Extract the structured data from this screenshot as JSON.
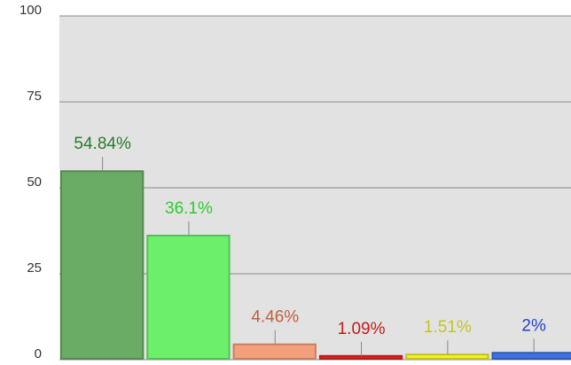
{
  "chart_data": {
    "type": "bar",
    "categories": [
      null,
      null,
      null,
      null,
      null,
      null
    ],
    "values": [
      54.84,
      36.1,
      4.46,
      1.09,
      1.51,
      2
    ],
    "value_labels": [
      "54.84%",
      "36.1%",
      "4.46%",
      "1.09%",
      "1.51%",
      "2%"
    ],
    "colors": [
      "#6aac66",
      "#6cf06c",
      "#f5a07c",
      "#e82222",
      "#f2f224",
      "#3c72e2"
    ],
    "label_colors": [
      "#2a7a2a",
      "#2ccc2c",
      "#c0603c",
      "#c01c1c",
      "#c4c426",
      "#2244c4"
    ],
    "ylim": [
      0,
      100
    ],
    "yticks": [
      0,
      25,
      50,
      75,
      100
    ],
    "grid": true
  }
}
